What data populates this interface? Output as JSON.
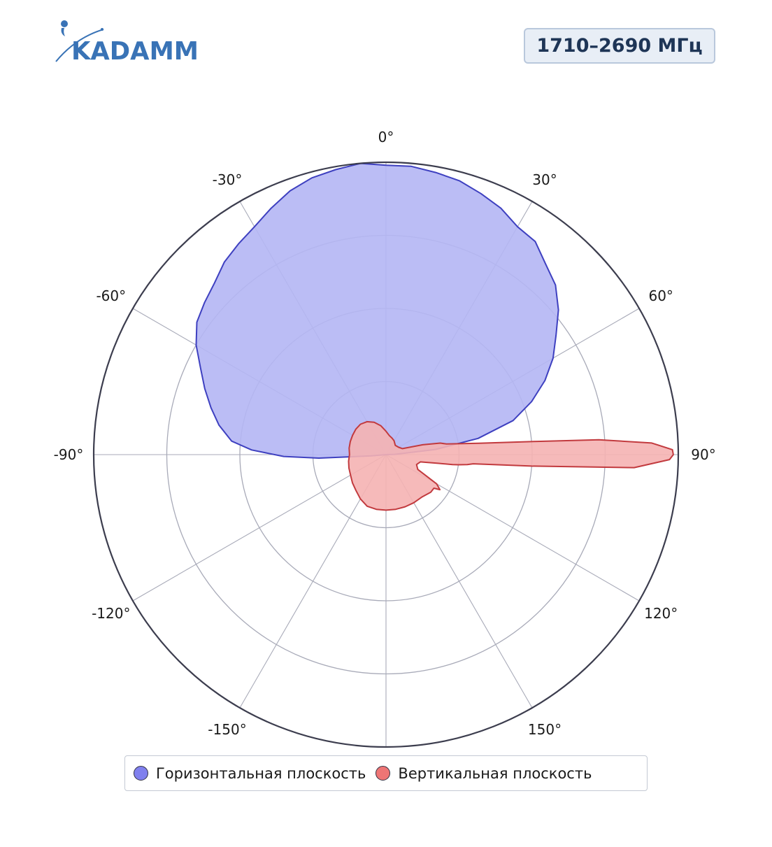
{
  "logo": {
    "text": "KADAMM"
  },
  "badge": {
    "frequency": "1710–2690 МГц"
  },
  "colors": {
    "horizontal_fill": "#b4b6f4",
    "horizontal_stroke": "#3e40c0",
    "vertical_fill": "#f5b2b3",
    "vertical_stroke": "#c23a3e",
    "grid": "#a8aab8",
    "outer_ring": "#3c3d4e",
    "brand": "#3973b6"
  },
  "legend": {
    "items": [
      {
        "label": "Горизонтальная плоскость",
        "color": "#8080ee"
      },
      {
        "label": "Вертикальная плоскость",
        "color": "#ee7575"
      }
    ]
  },
  "chart_data": {
    "type": "polar",
    "title": "",
    "angular_axis": {
      "unit": "degrees",
      "direction": "clockwise",
      "zero": "top",
      "ticks": [
        0,
        30,
        60,
        90,
        120,
        150,
        180,
        -150,
        -120,
        -90,
        -60,
        -30
      ],
      "tick_labels": [
        "0°",
        "30°",
        "60°",
        "90°",
        "120°",
        "150°",
        "",
        "-150°",
        "-120°",
        "-90°",
        "-60°",
        "-30°"
      ]
    },
    "radial_axis": {
      "range": [
        0,
        1
      ],
      "rings": [
        0.25,
        0.5,
        0.75,
        1.0
      ],
      "tick_labels_visible": false
    },
    "grid": true,
    "legend_placement": "bottom",
    "series": [
      {
        "name": "Горизонтальная плоскость",
        "color": "horizontal",
        "points": [
          [
            -95,
            0.05
          ],
          [
            -93,
            0.23
          ],
          [
            -91,
            0.35
          ],
          [
            -88,
            0.46
          ],
          [
            -85,
            0.53
          ],
          [
            -80,
            0.58
          ],
          [
            -75,
            0.62
          ],
          [
            -70,
            0.66
          ],
          [
            -65,
            0.7
          ],
          [
            -60,
            0.75
          ],
          [
            -55,
            0.79
          ],
          [
            -50,
            0.81
          ],
          [
            -45,
            0.83
          ],
          [
            -40,
            0.86
          ],
          [
            -35,
            0.88
          ],
          [
            -30,
            0.9
          ],
          [
            -25,
            0.93
          ],
          [
            -20,
            0.96
          ],
          [
            -15,
            0.98
          ],
          [
            -10,
            0.99
          ],
          [
            -5,
            1.0
          ],
          [
            0,
            0.99
          ],
          [
            5,
            0.99
          ],
          [
            10,
            0.98
          ],
          [
            15,
            0.97
          ],
          [
            20,
            0.95
          ],
          [
            25,
            0.93
          ],
          [
            30,
            0.9
          ],
          [
            35,
            0.89
          ],
          [
            40,
            0.85
          ],
          [
            45,
            0.82
          ],
          [
            50,
            0.77
          ],
          [
            55,
            0.71
          ],
          [
            60,
            0.66
          ],
          [
            65,
            0.6
          ],
          [
            70,
            0.53
          ],
          [
            75,
            0.45
          ],
          [
            80,
            0.32
          ],
          [
            84,
            0.17
          ],
          [
            88,
            0.03
          ]
        ]
      },
      {
        "name": "Вертикальная плоскость",
        "color": "vertical",
        "points": [
          [
            -90,
            0.125
          ],
          [
            -80,
            0.128
          ],
          [
            -70,
            0.13
          ],
          [
            -60,
            0.132
          ],
          [
            -50,
            0.135
          ],
          [
            -40,
            0.136
          ],
          [
            -30,
            0.13
          ],
          [
            -20,
            0.118
          ],
          [
            -10,
            0.1
          ],
          [
            0,
            0.08
          ],
          [
            10,
            0.066
          ],
          [
            20,
            0.06
          ],
          [
            30,
            0.055
          ],
          [
            45,
            0.045
          ],
          [
            60,
            0.05
          ],
          [
            70,
            0.06
          ],
          [
            75,
            0.13
          ],
          [
            78,
            0.19
          ],
          [
            80,
            0.21
          ],
          [
            83,
            0.32
          ],
          [
            85,
            0.52
          ],
          [
            86,
            0.73
          ],
          [
            87.5,
            0.91
          ],
          [
            89,
            0.98
          ],
          [
            90,
            0.983
          ],
          [
            91,
            0.97
          ],
          [
            93,
            0.85
          ],
          [
            94.5,
            0.5
          ],
          [
            96,
            0.3
          ],
          [
            97,
            0.28
          ],
          [
            98,
            0.25
          ],
          [
            98.5,
            0.23
          ],
          [
            99.5,
            0.18
          ],
          [
            102,
            0.12
          ],
          [
            108,
            0.11
          ],
          [
            115,
            0.12
          ],
          [
            120,
            0.2
          ],
          [
            123,
            0.22
          ],
          [
            125,
            0.2
          ],
          [
            130,
            0.2
          ],
          [
            140,
            0.19
          ],
          [
            150,
            0.19
          ],
          [
            160,
            0.19
          ],
          [
            170,
            0.19
          ],
          [
            180,
            0.19
          ],
          [
            190,
            0.19
          ],
          [
            200,
            0.188
          ],
          [
            210,
            0.175
          ],
          [
            220,
            0.16
          ],
          [
            230,
            0.15
          ],
          [
            240,
            0.14
          ],
          [
            250,
            0.135
          ],
          [
            260,
            0.13
          ],
          [
            270,
            0.125
          ]
        ]
      }
    ]
  }
}
